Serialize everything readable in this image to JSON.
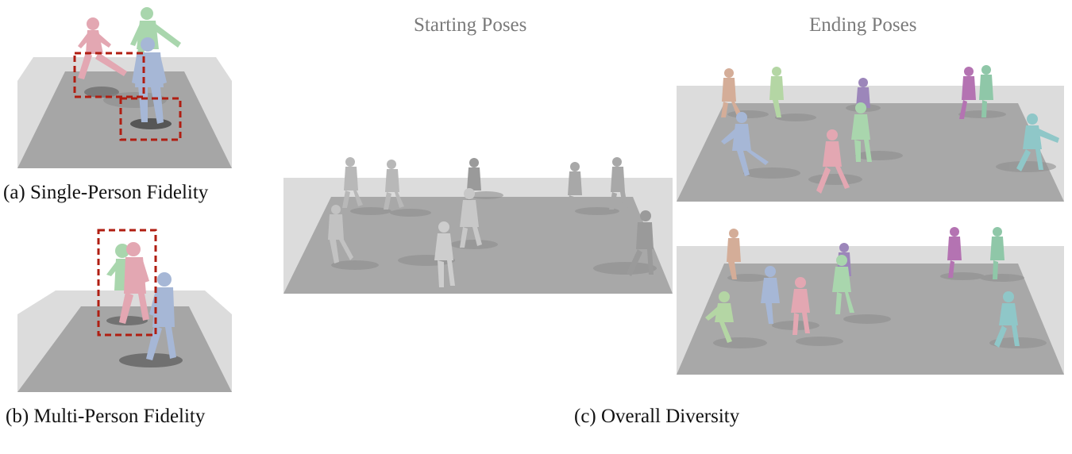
{
  "captions": {
    "a": "(a) Single-Person Fidelity",
    "b": "(b) Multi-Person Fidelity",
    "c": "(c) Overall Diversity"
  },
  "headers": {
    "start": "Starting Poses",
    "end": "Ending Poses"
  },
  "colors": {
    "floor_back": "#dcdcdc",
    "floor_top": "#a6a6a6",
    "highlight_box": "#b01e12",
    "body_pink": "#e3a7b2",
    "body_green": "#a9d6ad",
    "body_blue": "#a6b7d6",
    "body_gray": "#bdbdbd",
    "body_tan": "#d4ad98",
    "body_purple": "#9c86ba",
    "body_magenta": "#b473b2",
    "body_teal": "#8fc7c8",
    "shadow": "#8f8f8f"
  }
}
